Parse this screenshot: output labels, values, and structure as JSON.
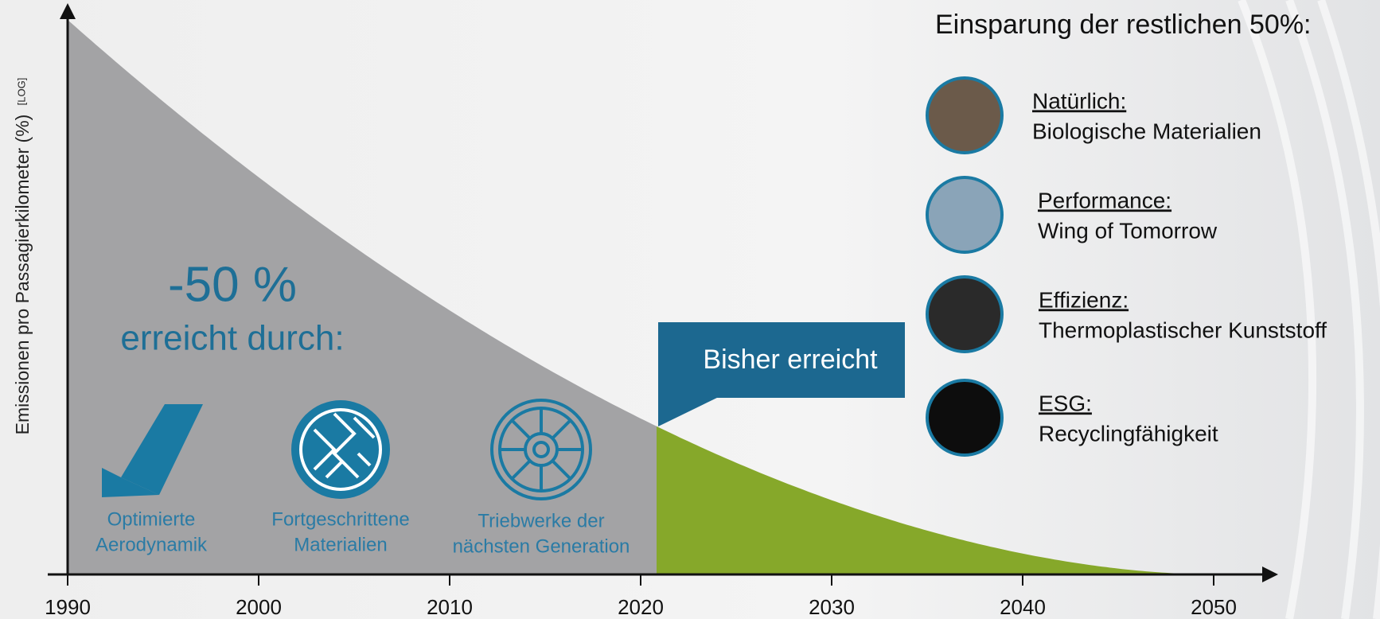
{
  "y_axis": {
    "label": "Emissionen pro Passagierkilometer (%)",
    "scale": "[LOG]"
  },
  "x_axis": {
    "ticks": [
      1990,
      2000,
      2010,
      2020,
      2030,
      2040,
      2050
    ]
  },
  "achieved": {
    "headline": "-50 %",
    "subline": "erreicht durch:",
    "measures": [
      {
        "lines": [
          "Optimierte",
          "Aerodynamik"
        ]
      },
      {
        "lines": [
          "Fortgeschrittene",
          "Materialien"
        ]
      },
      {
        "lines": [
          "Triebwerke der",
          "nächsten Generation"
        ]
      }
    ]
  },
  "callout": "Bisher erreicht",
  "remaining": {
    "title": "Einsparung der restlichen 50%:",
    "items": [
      {
        "heading": "Natürlich:",
        "text": "Biologische Materialien"
      },
      {
        "heading": "Performance:",
        "text": "Wing of Tomorrow"
      },
      {
        "heading": "Effizienz:",
        "text": "Thermoplastischer Kunststoff"
      },
      {
        "heading": "ESG:",
        "text": "Recyclingfähigkeit"
      }
    ]
  }
}
